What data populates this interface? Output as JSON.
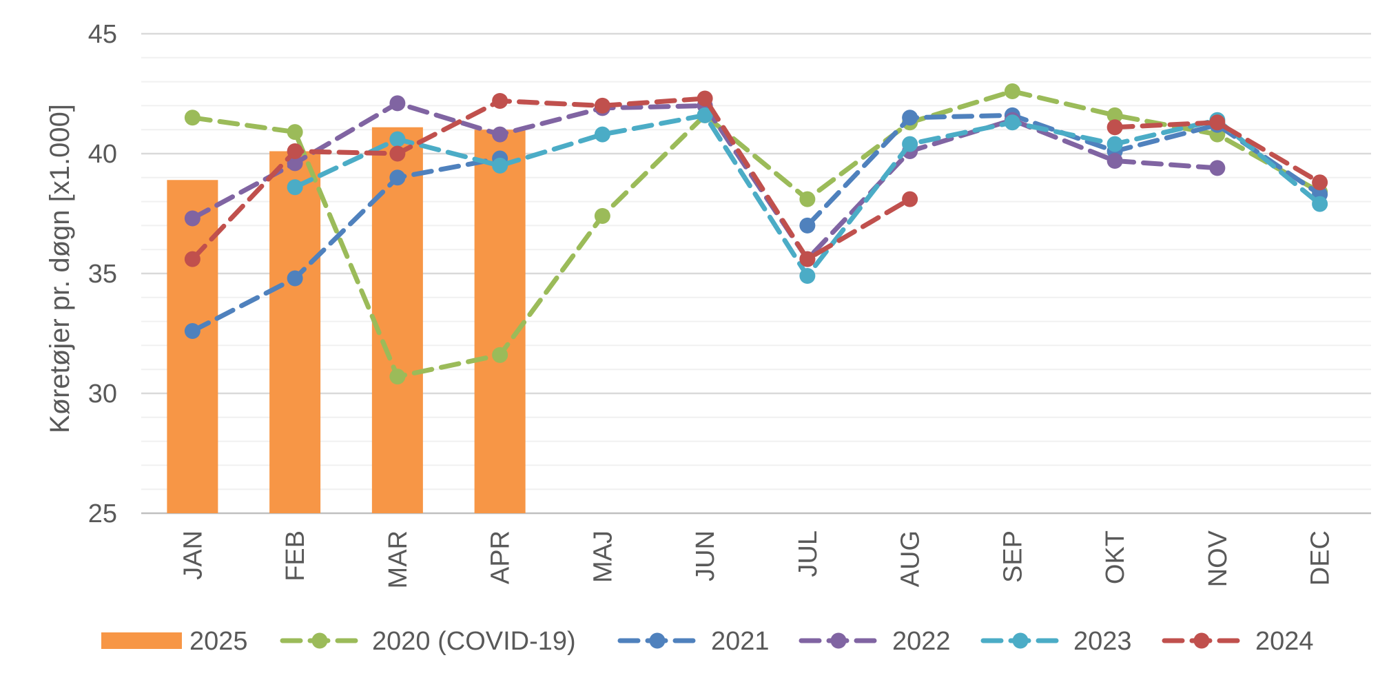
{
  "chart_data": {
    "type": "bar",
    "title": "",
    "ylabel": "Køretøjer pr. døgn [x1.000]",
    "xlabel": "",
    "ylim": [
      25,
      45
    ],
    "yticks": [
      25,
      30,
      35,
      40,
      45
    ],
    "minor_gridlines": true,
    "legend_position": "bottom",
    "categories": [
      "JAN",
      "FEB",
      "MAR",
      "APR",
      "MAJ",
      "JUN",
      "JUL",
      "AUG",
      "SEP",
      "OKT",
      "NOV",
      "DEC"
    ],
    "bars": {
      "name": "2025",
      "color": "#F79646",
      "values": [
        38.9,
        40.1,
        41.1,
        41.0,
        null,
        null,
        null,
        null,
        null,
        null,
        null,
        null
      ]
    },
    "series": [
      {
        "name": "2020 (COVID-19)",
        "type": "line",
        "style": "dashed",
        "color": "#9BBB59",
        "values": [
          41.5,
          40.9,
          30.7,
          31.6,
          37.4,
          41.6,
          38.1,
          41.3,
          42.6,
          41.6,
          40.8,
          38.4
        ]
      },
      {
        "name": "2021",
        "type": "line",
        "style": "dashed",
        "color": "#4F81BD",
        "values": [
          32.6,
          34.8,
          39.0,
          39.8,
          null,
          null,
          37.0,
          41.5,
          41.6,
          40.1,
          41.2,
          38.3
        ]
      },
      {
        "name": "2022",
        "type": "line",
        "style": "dashed",
        "color": "#8064A2",
        "values": [
          37.3,
          39.6,
          42.1,
          40.8,
          41.9,
          42.0,
          35.6,
          40.1,
          41.4,
          39.7,
          39.4,
          null
        ]
      },
      {
        "name": "2023",
        "type": "line",
        "style": "dashed",
        "color": "#4BACC6",
        "values": [
          null,
          38.6,
          40.6,
          39.5,
          40.8,
          41.6,
          34.9,
          40.4,
          41.3,
          40.4,
          41.4,
          37.9
        ]
      },
      {
        "name": "2024",
        "type": "line",
        "style": "dashed",
        "color": "#C0504D",
        "values": [
          35.6,
          40.1,
          40.0,
          42.2,
          42.0,
          42.3,
          35.6,
          38.1,
          null,
          41.1,
          41.3,
          38.8
        ]
      }
    ]
  }
}
